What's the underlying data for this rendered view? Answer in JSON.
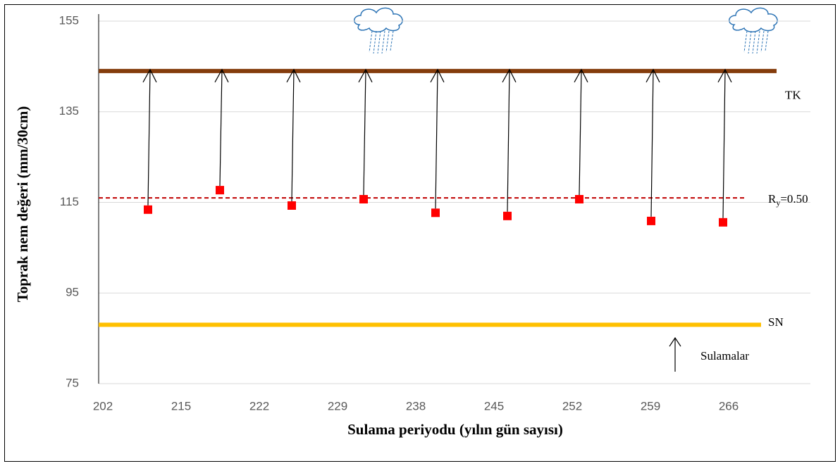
{
  "chart_data": {
    "type": "scatter",
    "y_label": "Toprak nem değeri (mm/30cm)",
    "x_label": "Sulama periyodu (yılın gün sayısı)",
    "categories": [
      202,
      215,
      222,
      229,
      238,
      245,
      252,
      259,
      266
    ],
    "values": [
      113.4,
      117.7,
      114.3,
      115.7,
      112.7,
      112.0,
      115.7,
      110.9,
      110.6
    ],
    "color": "#ff0000",
    "reference_lines": [
      {
        "name": "TK",
        "value": 144,
        "color": "#843c0c",
        "dash": false
      },
      {
        "label": [
          "R",
          "y",
          "=0.50"
        ],
        "value": 116,
        "color": "#c00000",
        "dash": true
      },
      {
        "name": "SN",
        "value": 88,
        "color": "#ffc000",
        "dash": false
      }
    ],
    "annotation": "Sulamalar",
    "ylim": [
      75,
      155
    ],
    "yticks": [
      75,
      95,
      115,
      135,
      155
    ],
    "grid": true
  }
}
